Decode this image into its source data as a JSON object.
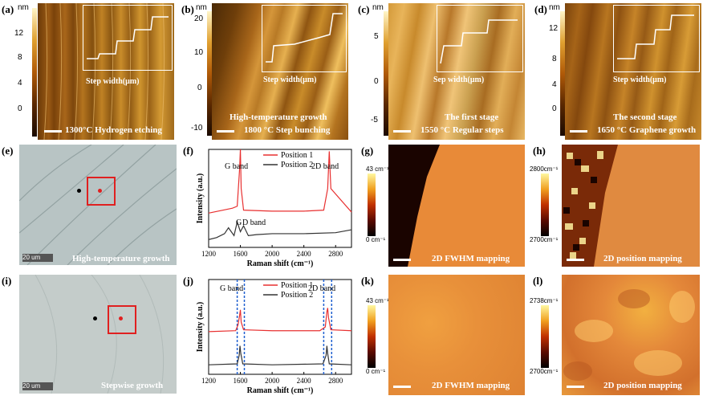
{
  "panels": {
    "a": {
      "label": "(a)",
      "unit": "nm",
      "ticks": [
        "12",
        "8",
        "4",
        "0"
      ],
      "caption": "1300°C Hydrogen etching",
      "inset_ylabel": "Step height(nm)",
      "inset_xlabel": "Step width(μm)",
      "inset_yticks": [
        "6",
        "4",
        "2",
        "0",
        "-2",
        "-4"
      ],
      "inset_xticks": [
        "0",
        "1",
        "2",
        "3"
      ]
    },
    "b": {
      "label": "(b)",
      "unit": "nm",
      "ticks": [
        "20",
        "10",
        "0",
        "-10"
      ],
      "caption_line1": "High-temperature growth",
      "caption_line2": "1800 °C  Step bunching",
      "inset_ylabel": "Step height(nm)",
      "inset_xlabel": "Step width(μm)",
      "inset_yticks": [
        "20",
        "10",
        "0",
        "-10",
        "-20"
      ],
      "inset_xticks": [
        "0",
        "5",
        "10"
      ]
    },
    "c": {
      "label": "(c)",
      "unit": "nm",
      "ticks": [
        "5",
        "0",
        "-5"
      ],
      "caption_line1": "The first stage",
      "caption_line2": "1550 °C  Regular steps",
      "inset_ylabel": "Step height(nm)",
      "inset_xlabel": "Sep width(μm)",
      "inset_yticks": [
        "10",
        "5",
        "0",
        "-5",
        "-10"
      ],
      "inset_xticks": [
        "0",
        "2",
        "4",
        "6",
        "8",
        "10"
      ]
    },
    "d": {
      "label": "(d)",
      "unit": "nm",
      "ticks": [
        "12",
        "8",
        "4",
        "0"
      ],
      "caption_line1": "The second stage",
      "caption_line2": "1650 °C  Graphene growth",
      "inset_ylabel": "Step height(nm)",
      "inset_xlabel": "Step width(μm)",
      "inset_yticks": [
        "10",
        "5",
        "0",
        "-5",
        "-10"
      ],
      "inset_xticks": [
        "0",
        "2",
        "4",
        "6",
        "8",
        "10"
      ]
    },
    "e": {
      "label": "(e)",
      "scale": "20 um",
      "caption": "High-temperature growth"
    },
    "f": {
      "label": "(f)"
    },
    "g": {
      "label": "(g)",
      "cmax": "43 cm⁻¹",
      "cmin": "0 cm⁻¹",
      "caption": "2D FWHM mapping"
    },
    "h": {
      "label": "(h)",
      "cmax": "2800cm⁻¹",
      "cmin": "2700cm⁻¹",
      "caption": "2D position mapping"
    },
    "i": {
      "label": "(i)",
      "scale": "20 um",
      "caption": "Stepwise growth"
    },
    "j": {
      "label": "(j)"
    },
    "k": {
      "label": "(k)",
      "cmax": "43 cm⁻¹",
      "cmin": "0 cm⁻¹",
      "caption": "2D FWHM mapping"
    },
    "l": {
      "label": "(l)",
      "cmax": "2738cm⁻¹",
      "cmin": "2700cm⁻¹",
      "caption": "2D position mapping"
    }
  },
  "chart_data": [
    {
      "type": "line",
      "panel": "f",
      "xlabel": "Raman shift (cm⁻¹)",
      "ylabel": "Intensity (a.u.)",
      "xlim": [
        1200,
        3000
      ],
      "xticks": [
        "1200",
        "1600",
        "2000",
        "2400",
        "2800"
      ],
      "annotations": [
        "G band",
        "2D band",
        "G",
        "D band"
      ],
      "series": [
        {
          "name": "Position 1",
          "color": "#e83030",
          "x": [
            1200,
            1500,
            1560,
            1590,
            1600,
            1610,
            1640,
            2000,
            2400,
            2650,
            2700,
            2720,
            2740,
            3000
          ],
          "y": [
            0.35,
            0.4,
            0.42,
            0.8,
            1.0,
            0.6,
            0.38,
            0.37,
            0.37,
            0.38,
            0.6,
            0.98,
            0.6,
            0.36
          ]
        },
        {
          "name": "Position 2",
          "color": "#333333",
          "x": [
            1200,
            1300,
            1400,
            1450,
            1520,
            1560,
            1600,
            1640,
            1700,
            1800,
            2000,
            2400,
            2800,
            3000
          ],
          "y": [
            0.08,
            0.1,
            0.14,
            0.2,
            0.12,
            0.26,
            0.16,
            0.22,
            0.12,
            0.13,
            0.14,
            0.14,
            0.15,
            0.18
          ]
        }
      ]
    },
    {
      "type": "line",
      "panel": "j",
      "xlabel": "Raman shift (cm⁻¹)",
      "ylabel": "Intensity (a.u.)",
      "xlim": [
        1200,
        3000
      ],
      "xticks": [
        "1200",
        "1600",
        "2000",
        "2400",
        "2800"
      ],
      "annotations": [
        "G band",
        "2D band"
      ],
      "series": [
        {
          "name": "Position 1",
          "color": "#e83030",
          "x": [
            1200,
            1540,
            1570,
            1590,
            1600,
            1610,
            1640,
            2000,
            2600,
            2670,
            2690,
            2700,
            2710,
            2740,
            3000
          ],
          "y": [
            0.45,
            0.46,
            0.52,
            0.62,
            0.68,
            0.55,
            0.47,
            0.46,
            0.46,
            0.5,
            0.66,
            0.7,
            0.6,
            0.47,
            0.46
          ]
        },
        {
          "name": "Position 2",
          "color": "#333333",
          "x": [
            1200,
            1560,
            1585,
            1595,
            1605,
            1630,
            2000,
            2640,
            2680,
            2690,
            2700,
            2720,
            3000
          ],
          "y": [
            0.1,
            0.11,
            0.2,
            0.3,
            0.22,
            0.11,
            0.1,
            0.11,
            0.2,
            0.3,
            0.22,
            0.11,
            0.1
          ]
        }
      ]
    }
  ]
}
